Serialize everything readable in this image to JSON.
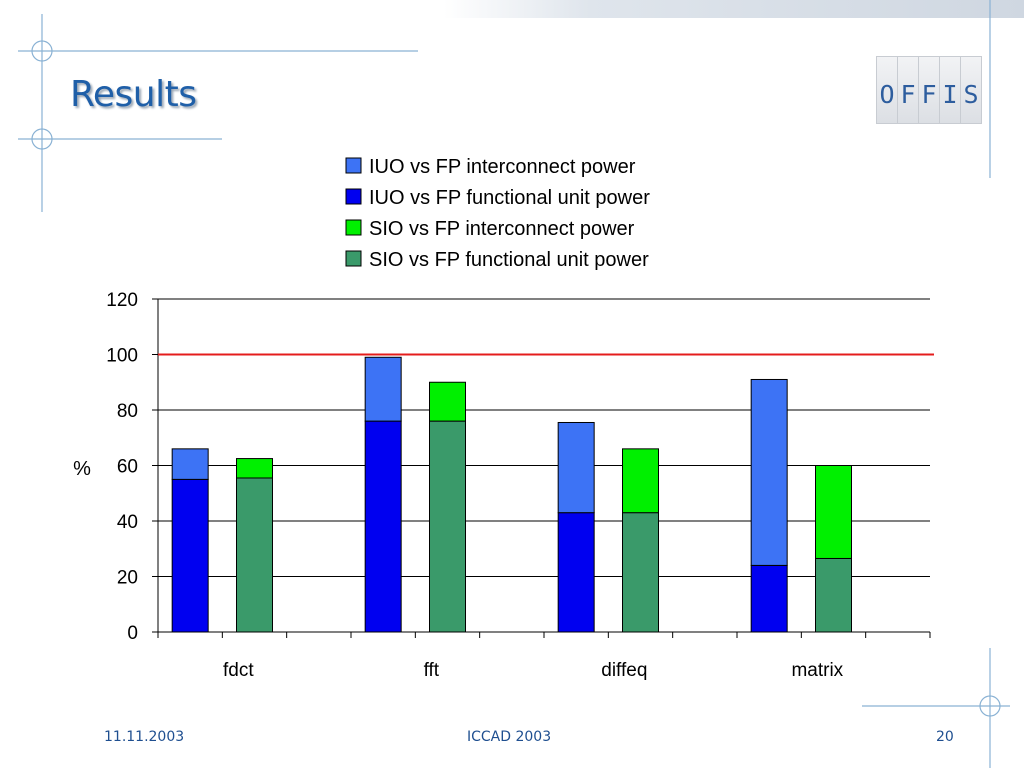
{
  "slide": {
    "title": "Results",
    "logo_letters": [
      "O",
      "F",
      "F",
      "I",
      "S"
    ],
    "footer": {
      "date": "11.11.2003",
      "conference": "ICCAD 2003",
      "page": "20"
    }
  },
  "chart_data": {
    "type": "bar",
    "stacked": true,
    "title": "",
    "xlabel": "",
    "ylabel": "%",
    "ylim": [
      0,
      120
    ],
    "yticks": [
      0,
      20,
      40,
      60,
      80,
      100,
      120
    ],
    "grid": true,
    "legend_position": "top",
    "reference_line": {
      "y": 100,
      "color": "#e41c1c"
    },
    "categories": [
      "fdct",
      "fft",
      "diffeq",
      "matrix"
    ],
    "legend": [
      {
        "name": "IUO vs FP interconnect power",
        "color": "#3d73f5"
      },
      {
        "name": "IUO vs FP functional unit power",
        "color": "#0000f0"
      },
      {
        "name": "SIO vs FP interconnect power",
        "color": "#00f000"
      },
      {
        "name": "SIO vs FP functional unit power",
        "color": "#3a9a6a"
      }
    ],
    "bars": [
      {
        "group": "IUO",
        "series": [
          "IUO vs FP functional unit power",
          "IUO vs FP interconnect power"
        ],
        "values": [
          [
            55,
            66
          ],
          [
            76,
            99
          ],
          [
            43,
            75.5
          ],
          [
            24,
            91
          ]
        ]
      },
      {
        "group": "SIO",
        "series": [
          "SIO vs FP functional unit power",
          "SIO vs FP interconnect power"
        ],
        "values": [
          [
            55.5,
            62.5
          ],
          [
            76,
            90
          ],
          [
            43,
            66
          ],
          [
            26.5,
            60
          ]
        ]
      }
    ]
  }
}
